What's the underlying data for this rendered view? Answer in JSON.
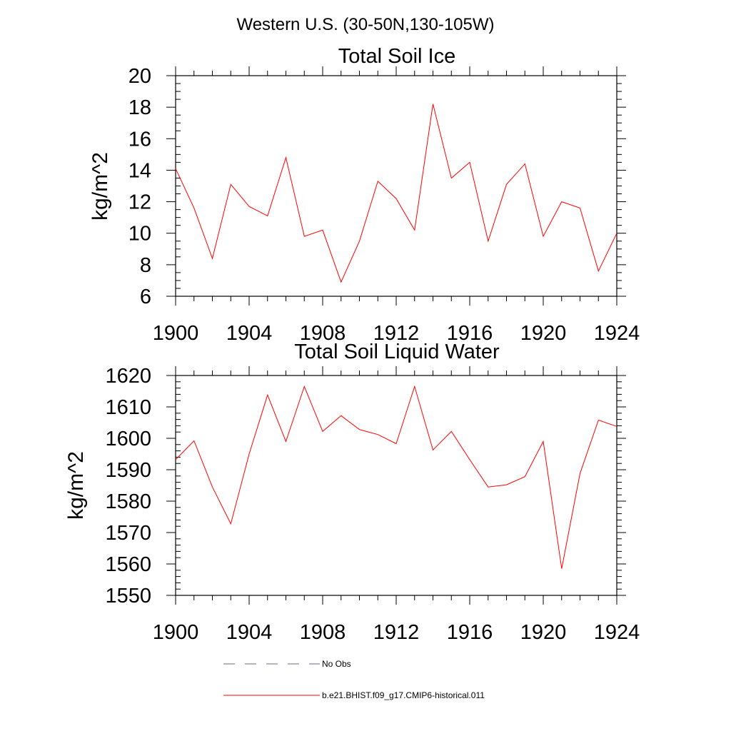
{
  "title": "Western U.S. (30-50N,130-105W)",
  "legend": [
    {
      "label": "No Obs",
      "color": "#6a6a8a",
      "dash": true
    },
    {
      "label": "b.e21.BHIST.f09_g17.CMIP6-historical.011",
      "color": "#ff0000",
      "dash": false
    }
  ],
  "chart_data": [
    {
      "type": "line",
      "title": "Total Soil Ice",
      "xlabel": "",
      "ylabel": "kg/m^2",
      "xlim": [
        1900,
        1924
      ],
      "ylim": [
        6,
        20
      ],
      "xticks": [
        1900,
        1904,
        1908,
        1912,
        1916,
        1920,
        1924
      ],
      "yticks": [
        6,
        8,
        10,
        12,
        14,
        16,
        18,
        20
      ],
      "x_minor_step": 1,
      "y_minor_step": 0.5,
      "grid": false,
      "legend_position": "bottom",
      "series": [
        {
          "name": "b.e21.BHIST.f09_g17.CMIP6-historical.011",
          "color": "#ff0000",
          "x": [
            1900,
            1901,
            1902,
            1903,
            1904,
            1905,
            1906,
            1907,
            1908,
            1909,
            1910,
            1911,
            1912,
            1913,
            1914,
            1915,
            1916,
            1917,
            1918,
            1919,
            1920,
            1921,
            1922,
            1923,
            1924
          ],
          "values": [
            14.1,
            11.6,
            8.4,
            13.1,
            11.7,
            11.1,
            14.8,
            9.8,
            10.2,
            6.9,
            9.5,
            13.3,
            12.2,
            10.2,
            18.2,
            13.5,
            14.5,
            9.5,
            13.1,
            14.4,
            9.8,
            12.0,
            11.6,
            7.6,
            10.0
          ]
        }
      ]
    },
    {
      "type": "line",
      "title": "Total Soil Liquid Water",
      "xlabel": "",
      "ylabel": "kg/m^2",
      "xlim": [
        1900,
        1924
      ],
      "ylim": [
        1550,
        1620
      ],
      "xticks": [
        1900,
        1904,
        1908,
        1912,
        1916,
        1920,
        1924
      ],
      "yticks": [
        1550,
        1560,
        1570,
        1580,
        1590,
        1600,
        1610,
        1620
      ],
      "x_minor_step": 1,
      "y_minor_step": 2,
      "grid": false,
      "legend_position": "bottom",
      "series": [
        {
          "name": "b.e21.BHIST.f09_g17.CMIP6-historical.011",
          "color": "#ff0000",
          "x": [
            1900,
            1901,
            1902,
            1903,
            1904,
            1905,
            1906,
            1907,
            1908,
            1909,
            1910,
            1911,
            1912,
            1913,
            1914,
            1915,
            1916,
            1917,
            1918,
            1919,
            1920,
            1921,
            1922,
            1923,
            1924
          ],
          "values": [
            1593.2,
            1599.2,
            1584.5,
            1572.8,
            1595.0,
            1613.8,
            1599.0,
            1616.5,
            1602.2,
            1607.2,
            1602.8,
            1601.2,
            1598.3,
            1616.5,
            1596.3,
            1602.2,
            1593.2,
            1584.5,
            1585.2,
            1587.8,
            1599.0,
            1558.5,
            1588.8,
            1605.8,
            1603.8
          ]
        }
      ]
    }
  ]
}
